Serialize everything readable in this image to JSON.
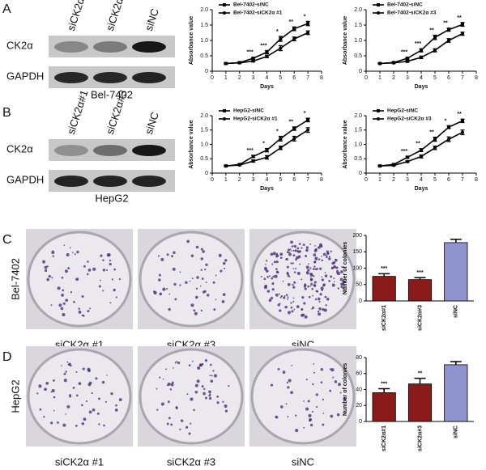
{
  "blots": [
    {
      "label": "A",
      "lanes": [
        "siCK2α#1",
        "siCK2α#3",
        "siNC"
      ],
      "rows": [
        "CK2α",
        "GAPDH"
      ],
      "cell_line": "Bel-7402"
    },
    {
      "label": "B",
      "lanes": [
        "siCK2α#1",
        "siCK2α#3",
        "siNC"
      ],
      "rows": [
        "CK2α",
        "GAPDH"
      ],
      "cell_line": "HepG2"
    }
  ],
  "colonies": [
    {
      "label": "C",
      "cell_line": "Bel-7402",
      "plates": [
        "siCK2α #1",
        "siCK2α #3",
        "siNC"
      ]
    },
    {
      "label": "D",
      "cell_line": "HepG2",
      "plates": [
        "siCK2α #1",
        "siCK2α #3",
        "siNC"
      ]
    }
  ],
  "chart_data": [
    {
      "type": "line",
      "xlabel": "Days",
      "ylabel": "Absorbance value",
      "x": [
        1,
        2,
        3,
        4,
        5,
        6,
        7
      ],
      "xlim": [
        0,
        8
      ],
      "xticks": [
        0,
        1,
        2,
        3,
        4,
        5,
        6,
        7,
        8
      ],
      "ylim": [
        0,
        2
      ],
      "yticks": [
        0,
        0.5,
        {
          "value": 1,
          "label": "1.0"
        },
        1.5,
        {
          "value": 2,
          "label": "2.0"
        }
      ],
      "legend": "upper left",
      "series": [
        {
          "name": "Bel-7402-siNC",
          "color": "#000000",
          "marker": "square",
          "values": [
            0.25,
            0.28,
            0.42,
            0.62,
            1.05,
            1.38,
            1.55
          ],
          "errors": [
            0.02,
            0.02,
            0.03,
            0.05,
            0.08,
            0.06,
            0.07
          ]
        },
        {
          "name": "Bel-7402-siCK2α #1",
          "color": "#000000",
          "marker": "circle",
          "values": [
            0.25,
            0.27,
            0.33,
            0.48,
            0.75,
            1.05,
            1.25
          ],
          "errors": [
            0.02,
            0.02,
            0.03,
            0.04,
            0.08,
            0.06,
            0.06
          ]
        }
      ],
      "annotations": [
        null,
        null,
        "***",
        "***",
        "*",
        "**",
        "*"
      ]
    },
    {
      "type": "line",
      "xlabel": "Days",
      "ylabel": "Absorbance value",
      "x": [
        1,
        2,
        3,
        4,
        5,
        6,
        7
      ],
      "xlim": [
        0,
        8
      ],
      "xticks": [
        0,
        1,
        2,
        3,
        4,
        5,
        6,
        7,
        8
      ],
      "ylim": [
        0,
        2
      ],
      "yticks": [
        0,
        0.5,
        {
          "value": 1,
          "label": "1.0"
        },
        1.5,
        {
          "value": 2,
          "label": "2.0"
        }
      ],
      "legend": "upper left",
      "series": [
        {
          "name": "Bel-7402-siNC",
          "color": "#000000",
          "marker": "square",
          "values": [
            0.25,
            0.28,
            0.42,
            0.68,
            1.1,
            1.35,
            1.52
          ],
          "errors": [
            0.02,
            0.02,
            0.03,
            0.05,
            0.07,
            0.05,
            0.06
          ]
        },
        {
          "name": "Bel-7402-siCK2α #3",
          "color": "#000000",
          "marker": "circle",
          "values": [
            0.25,
            0.27,
            0.32,
            0.45,
            0.68,
            1.0,
            1.22
          ],
          "errors": [
            0.02,
            0.02,
            0.03,
            0.04,
            0.05,
            0.06,
            0.05
          ]
        }
      ],
      "annotations": [
        null,
        null,
        "***",
        "***",
        "**",
        "**",
        "**"
      ]
    },
    {
      "type": "line",
      "xlabel": "Days",
      "ylabel": "Absorbance value",
      "x": [
        1,
        2,
        3,
        4,
        5,
        6,
        7
      ],
      "xlim": [
        0,
        8
      ],
      "xticks": [
        0,
        1,
        2,
        3,
        4,
        5,
        6,
        7,
        8
      ],
      "ylim": [
        0,
        2
      ],
      "yticks": [
        0,
        0.5,
        {
          "value": 1,
          "label": "1.0"
        },
        1.5,
        {
          "value": 2,
          "label": "2.0"
        }
      ],
      "legend": "upper left",
      "series": [
        {
          "name": "HepG2-siNC",
          "color": "#000000",
          "marker": "square",
          "values": [
            0.25,
            0.3,
            0.58,
            0.8,
            1.2,
            1.55,
            1.85
          ],
          "errors": [
            0.02,
            0.02,
            0.04,
            0.06,
            0.08,
            0.06,
            0.06
          ]
        },
        {
          "name": "HepG2-siCK2α #1",
          "color": "#000000",
          "marker": "circle",
          "values": [
            0.25,
            0.28,
            0.42,
            0.55,
            0.88,
            1.2,
            1.5
          ],
          "errors": [
            0.02,
            0.02,
            0.04,
            0.06,
            0.06,
            0.08,
            0.08
          ]
        }
      ],
      "annotations": [
        null,
        null,
        "***",
        "*",
        "*",
        "**",
        "*"
      ]
    },
    {
      "type": "line",
      "xlabel": "Days",
      "ylabel": "Absorbance value",
      "x": [
        1,
        2,
        3,
        4,
        5,
        6,
        7
      ],
      "xlim": [
        0,
        8
      ],
      "xticks": [
        0,
        1,
        2,
        3,
        4,
        5,
        6,
        7,
        8
      ],
      "ylim": [
        0,
        2
      ],
      "yticks": [
        0,
        0.5,
        {
          "value": 1,
          "label": "1.0"
        },
        1.5,
        {
          "value": 2,
          "label": "2.0"
        }
      ],
      "legend": "upper left",
      "series": [
        {
          "name": "HepG2-siNC",
          "color": "#000000",
          "marker": "square",
          "values": [
            0.25,
            0.3,
            0.55,
            0.8,
            1.18,
            1.6,
            1.82
          ],
          "errors": [
            0.02,
            0.02,
            0.04,
            0.05,
            0.07,
            0.05,
            0.06
          ]
        },
        {
          "name": "HepG2-siCK2α #3",
          "color": "#000000",
          "marker": "circle",
          "values": [
            0.25,
            0.27,
            0.4,
            0.58,
            0.88,
            1.18,
            1.42
          ],
          "errors": [
            0.02,
            0.02,
            0.03,
            0.05,
            0.06,
            0.08,
            0.08
          ]
        }
      ],
      "annotations": [
        null,
        null,
        "***",
        "**",
        "**",
        "*",
        "**"
      ]
    },
    {
      "type": "bar",
      "ylabel": "Number of colonies",
      "categories": [
        "siCK2α#1",
        "siCK2α#3",
        "siNC"
      ],
      "values": [
        75,
        65,
        178
      ],
      "errors": [
        8,
        6,
        10
      ],
      "colors": [
        "#8b1a1a",
        "#8b1a1a",
        "#8f94d1"
      ],
      "ylim": [
        0,
        200
      ],
      "yticks": [
        0,
        50,
        100,
        150,
        200
      ],
      "annotations": [
        "***",
        "***",
        null
      ]
    },
    {
      "type": "bar",
      "ylabel": "Number of colonies",
      "categories": [
        "siCK2α#1",
        "siCK2α#3",
        "siNC"
      ],
      "values": [
        36,
        47,
        71
      ],
      "errors": [
        5,
        7,
        4
      ],
      "colors": [
        "#8b1a1a",
        "#8b1a1a",
        "#8f94d1"
      ],
      "ylim": [
        0,
        80
      ],
      "yticks": [
        0,
        20,
        40,
        60,
        80
      ],
      "annotations": [
        "***",
        "**",
        null
      ]
    }
  ]
}
